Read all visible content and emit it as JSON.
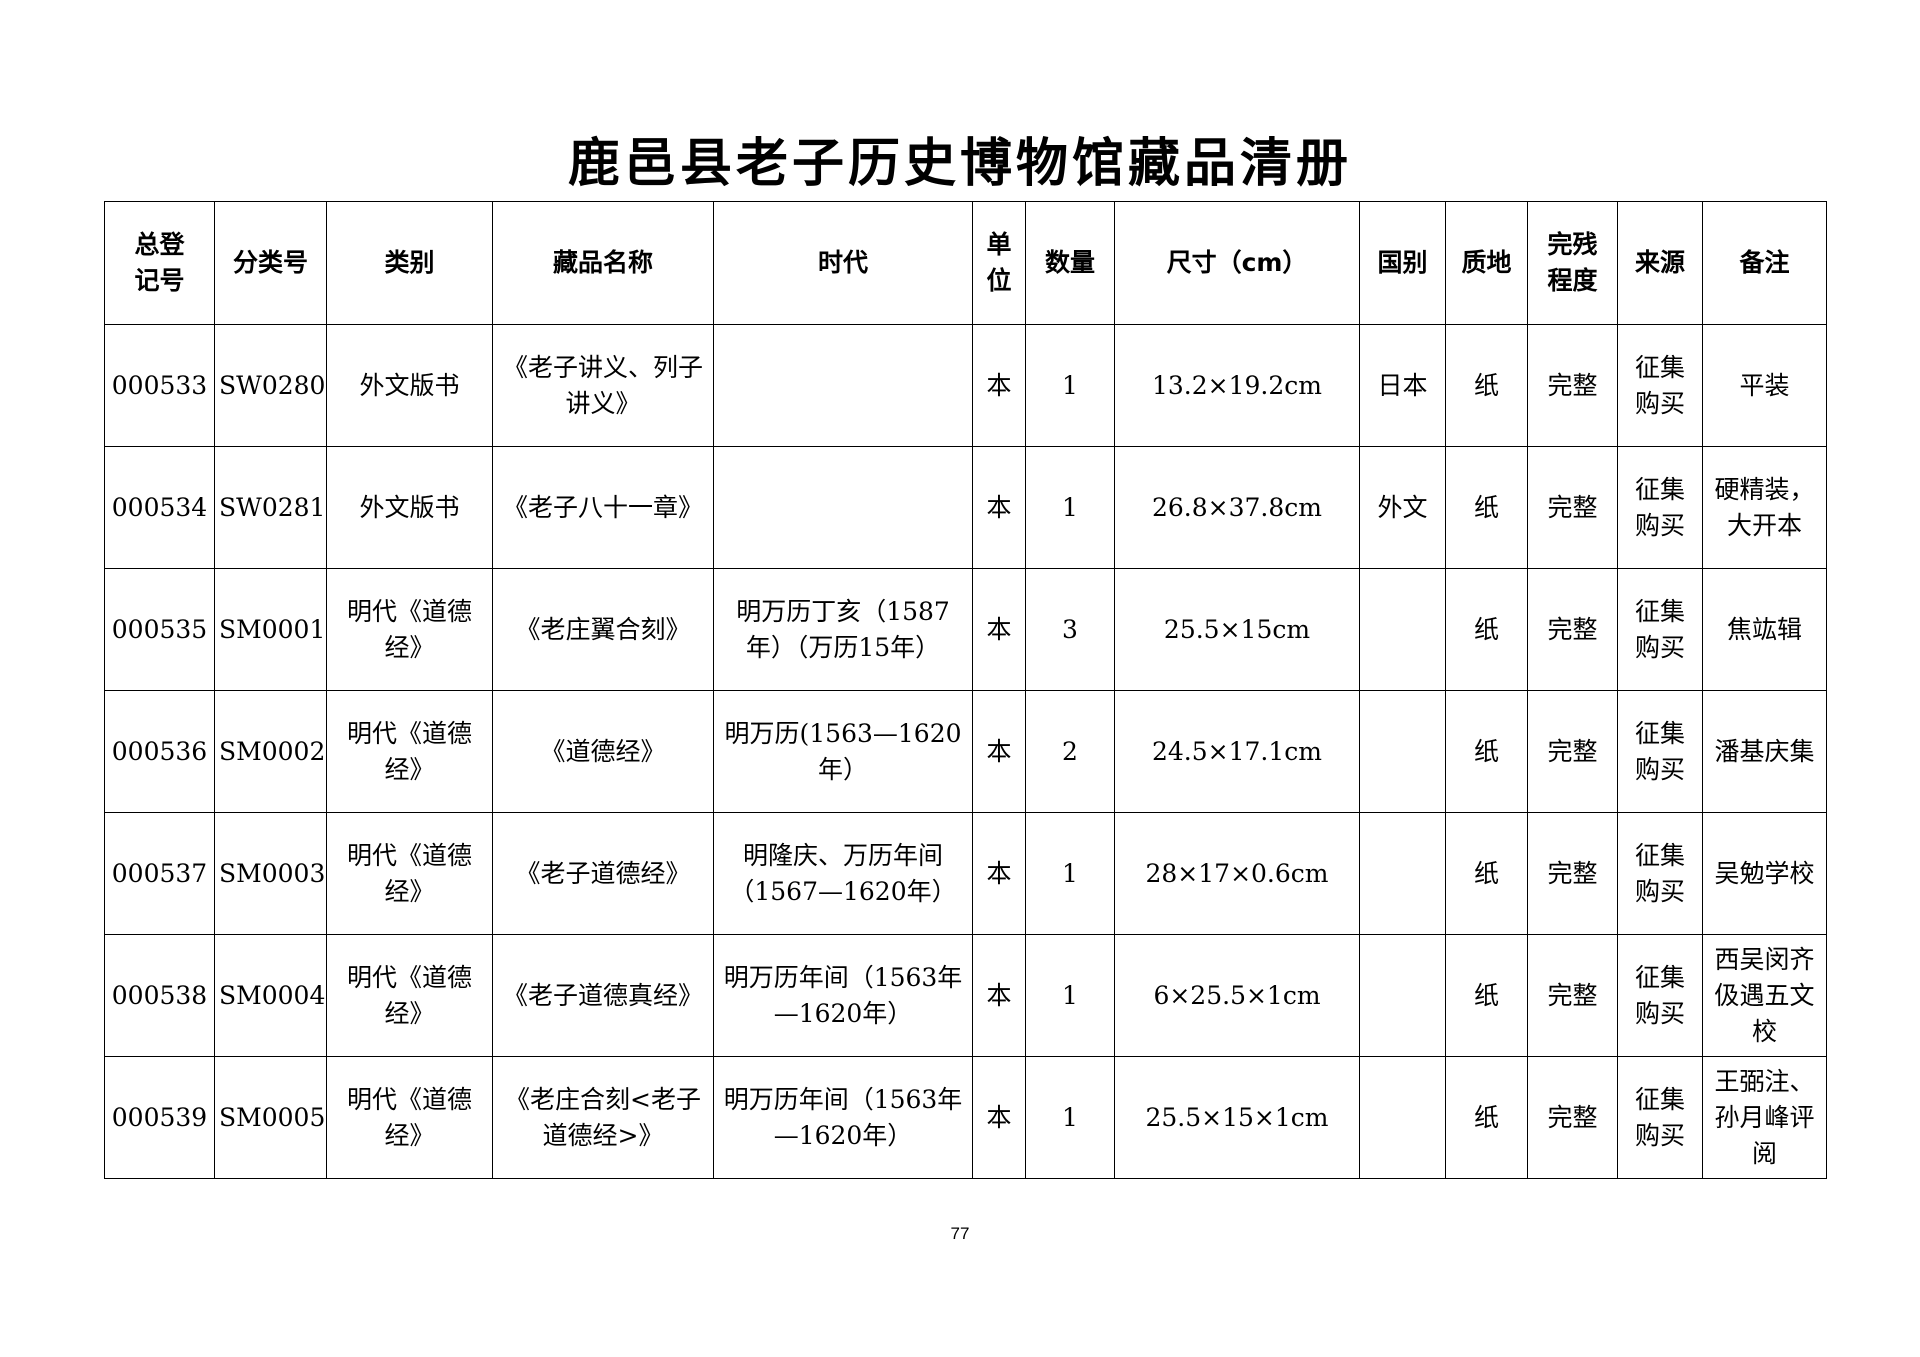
{
  "document": {
    "title": "鹿邑县老子历史博物馆藏品清册",
    "page_number": "77"
  },
  "table": {
    "headers": [
      "总登\n记号",
      "分类号",
      "类别",
      "藏品名称",
      "时代",
      "单\n位",
      "数量",
      "尺寸（cm）",
      "国别",
      "质地",
      "完残\n程度",
      "来源",
      "备注"
    ],
    "rows": [
      [
        "000533",
        "SW0280",
        "外文版书",
        "《老子讲义、列子讲义》",
        "",
        "本",
        "1",
        "13.2×19.2cm",
        "日本",
        "纸",
        "完整",
        "征集\n购买",
        "平装"
      ],
      [
        "000534",
        "SW0281",
        "外文版书",
        "《老子八十一章》",
        "",
        "本",
        "1",
        "26.8×37.8cm",
        "外文",
        "纸",
        "完整",
        "征集\n购买",
        "硬精装，大开本"
      ],
      [
        "000535",
        "SM0001",
        "明代《道德经》",
        "《老庄翼合刻》",
        "明万历丁亥（1587年）（万历15年）",
        "本",
        "3",
        "25.5×15cm",
        "",
        "纸",
        "完整",
        "征集\n购买",
        "焦竑辑"
      ],
      [
        "000536",
        "SM0002",
        "明代《道德经》",
        "《道德经》",
        "明万历(1563—1620年）",
        "本",
        "2",
        "24.5×17.1cm",
        "",
        "纸",
        "完整",
        "征集\n购买",
        "潘基庆集"
      ],
      [
        "000537",
        "SM0003",
        "明代《道德经》",
        "《老子道德经》",
        "明隆庆、万历年间（1567—1620年）",
        "本",
        "1",
        "28×17×0.6cm",
        "",
        "纸",
        "完整",
        "征集\n购买",
        "吴勉学校"
      ],
      [
        "000538",
        "SM0004",
        "明代《道德经》",
        "《老子道德真经》",
        "明万历年间（1563年—1620年）",
        "本",
        "1",
        "6×25.5×1cm",
        "",
        "纸",
        "完整",
        "征集\n购买",
        "西吴闵齐伋遇五文校"
      ],
      [
        "000539",
        "SM0005",
        "明代《道德经》",
        "《老庄合刻<老子道德经>》",
        "明万历年间（1563年—1620年）",
        "本",
        "1",
        "25.5×15×1cm",
        "",
        "纸",
        "完整",
        "征集\n购买",
        "王弼注、孙月峰评阅"
      ]
    ]
  }
}
